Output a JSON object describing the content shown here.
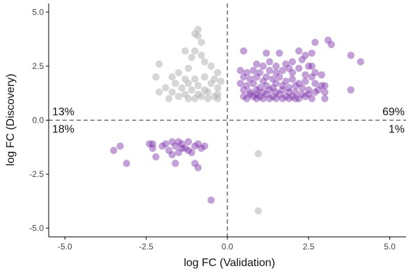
{
  "chart_data": {
    "type": "scatter",
    "xlabel": "log FC (Validation)",
    "ylabel": "log FC (Discovery)",
    "xlim": [
      -5.5,
      5.5
    ],
    "ylim": [
      -5.4,
      5.4
    ],
    "x_ticks": [
      -5.0,
      -2.5,
      0.0,
      2.5,
      5.0
    ],
    "x_tick_labels": [
      "-5.0",
      "-2.5",
      "0.0",
      "2.5",
      "5.0"
    ],
    "y_ticks": [
      -5.0,
      -2.5,
      0.0,
      2.5,
      5.0
    ],
    "y_tick_labels": [
      "-5.0",
      "-2.5",
      "0.0",
      "2.5",
      "5.0"
    ],
    "grid": false,
    "reference_lines": {
      "x": 0,
      "y": 0,
      "style": "dashed"
    },
    "colors": {
      "concordant": "#7b2fa8",
      "discordant": "#b5b5b5",
      "reference_line": "#555555"
    },
    "quadrant_labels": [
      {
        "quadrant": "upper-left",
        "text": "13%"
      },
      {
        "quadrant": "lower-left",
        "text": "18%"
      },
      {
        "quadrant": "upper-right",
        "text": "69%"
      },
      {
        "quadrant": "lower-right",
        "text": "1%"
      }
    ],
    "series": [
      {
        "group": "concordant",
        "color": "#7b2fa8",
        "opacity": 0.45,
        "points": [
          [
            0.5,
            3.2
          ],
          [
            1.2,
            3.1
          ],
          [
            1.6,
            3.1
          ],
          [
            2.2,
            3.2
          ],
          [
            2.4,
            3.0
          ],
          [
            2.6,
            3.1
          ],
          [
            2.7,
            3.6
          ],
          [
            3.1,
            3.7
          ],
          [
            3.2,
            3.5
          ],
          [
            3.8,
            3.0
          ],
          [
            4.1,
            2.7
          ],
          [
            0.9,
            2.6
          ],
          [
            1.3,
            2.7
          ],
          [
            1.5,
            2.5
          ],
          [
            1.8,
            2.6
          ],
          [
            2.0,
            2.7
          ],
          [
            2.3,
            2.8
          ],
          [
            2.5,
            2.5
          ],
          [
            2.6,
            2.5
          ],
          [
            2.7,
            2.2
          ],
          [
            2.9,
            2.1
          ],
          [
            0.4,
            2.3
          ],
          [
            0.6,
            2.2
          ],
          [
            0.8,
            2.3
          ],
          [
            1.0,
            2.2
          ],
          [
            1.1,
            2.5
          ],
          [
            1.3,
            2.3
          ],
          [
            1.5,
            2.2
          ],
          [
            1.7,
            2.3
          ],
          [
            1.9,
            2.4
          ],
          [
            2.0,
            2.2
          ],
          [
            2.2,
            2.4
          ],
          [
            2.4,
            2.1
          ],
          [
            2.6,
            2.0
          ],
          [
            0.5,
            2.0
          ],
          [
            0.7,
            1.9
          ],
          [
            0.9,
            2.0
          ],
          [
            1.1,
            1.8
          ],
          [
            1.2,
            2.0
          ],
          [
            1.4,
            1.9
          ],
          [
            1.6,
            2.0
          ],
          [
            1.8,
            1.8
          ],
          [
            2.0,
            1.9
          ],
          [
            2.2,
            1.7
          ],
          [
            2.4,
            1.8
          ],
          [
            2.7,
            1.7
          ],
          [
            2.9,
            1.6
          ],
          [
            3.0,
            1.6
          ],
          [
            0.4,
            1.7
          ],
          [
            0.6,
            1.6
          ],
          [
            0.8,
            1.7
          ],
          [
            1.0,
            1.5
          ],
          [
            1.2,
            1.6
          ],
          [
            1.4,
            1.5
          ],
          [
            1.5,
            1.7
          ],
          [
            1.7,
            1.6
          ],
          [
            1.9,
            1.5
          ],
          [
            2.1,
            1.6
          ],
          [
            2.3,
            1.5
          ],
          [
            2.5,
            1.4
          ],
          [
            2.8,
            1.4
          ],
          [
            3.8,
            1.4
          ],
          [
            0.5,
            1.4
          ],
          [
            0.7,
            1.3
          ],
          [
            0.9,
            1.4
          ],
          [
            1.1,
            1.3
          ],
          [
            1.3,
            1.4
          ],
          [
            1.5,
            1.3
          ],
          [
            1.7,
            1.4
          ],
          [
            1.9,
            1.3
          ],
          [
            2.1,
            1.3
          ],
          [
            2.3,
            1.2
          ],
          [
            2.5,
            1.2
          ],
          [
            2.7,
            1.3
          ],
          [
            3.0,
            1.3
          ],
          [
            0.5,
            1.1
          ],
          [
            0.7,
            1.2
          ],
          [
            0.8,
            1.1
          ],
          [
            0.9,
            1.2
          ],
          [
            1.0,
            1.1
          ],
          [
            1.2,
            1.2
          ],
          [
            1.4,
            1.1
          ],
          [
            1.6,
            1.2
          ],
          [
            1.8,
            1.1
          ],
          [
            2.0,
            1.1
          ],
          [
            2.2,
            1.0
          ],
          [
            2.4,
            1.1
          ],
          [
            2.6,
            1.0
          ],
          [
            3.0,
            1.0
          ],
          [
            0.6,
            1.0
          ],
          [
            0.9,
            1.0
          ],
          [
            1.1,
            1.0
          ],
          [
            1.3,
            1.0
          ],
          [
            1.5,
            1.0
          ],
          [
            1.7,
            1.0
          ],
          [
            1.9,
            1.0
          ],
          [
            2.1,
            1.0
          ],
          [
            -3.5,
            -1.4
          ],
          [
            -3.3,
            -1.2
          ],
          [
            -3.1,
            -2.0
          ],
          [
            -2.4,
            -1.1
          ],
          [
            -2.3,
            -1.3
          ],
          [
            -2.2,
            -1.7
          ],
          [
            -2.0,
            -1.2
          ],
          [
            -1.9,
            -1.1
          ],
          [
            -1.8,
            -1.4
          ],
          [
            -1.7,
            -1.6
          ],
          [
            -1.6,
            -1.2
          ],
          [
            -1.5,
            -1.0
          ],
          [
            -1.4,
            -1.1
          ],
          [
            -1.3,
            -1.3
          ],
          [
            -1.2,
            -1.0
          ],
          [
            -1.1,
            -1.5
          ],
          [
            -1.0,
            -1.2
          ],
          [
            -0.9,
            -1.1
          ],
          [
            -0.8,
            -1.3
          ],
          [
            -0.7,
            -1.2
          ],
          [
            -1.0,
            -2.0
          ],
          [
            -0.9,
            -2.2
          ],
          [
            -1.5,
            -1.5
          ],
          [
            -2.3,
            -1.1
          ],
          [
            -1.7,
            -1.0
          ],
          [
            -1.4,
            -1.3
          ],
          [
            -1.2,
            -1.4
          ],
          [
            -1.6,
            -2.0
          ],
          [
            -0.5,
            -3.7
          ]
        ]
      },
      {
        "group": "discordant",
        "color": "#b5b5b5",
        "opacity": 0.55,
        "points": [
          [
            -0.9,
            4.2
          ],
          [
            -1.0,
            4.0
          ],
          [
            -0.9,
            3.9
          ],
          [
            -0.8,
            3.6
          ],
          [
            -1.3,
            3.2
          ],
          [
            -1.0,
            3.2
          ],
          [
            -0.8,
            3.0
          ],
          [
            -1.1,
            2.9
          ],
          [
            -2.1,
            2.6
          ],
          [
            -0.7,
            2.7
          ],
          [
            -0.5,
            2.5
          ],
          [
            -1.2,
            2.4
          ],
          [
            -1.5,
            2.2
          ],
          [
            -0.3,
            2.2
          ],
          [
            -2.2,
            2.0
          ],
          [
            -1.7,
            2.0
          ],
          [
            -1.3,
            1.9
          ],
          [
            -1.0,
            1.9
          ],
          [
            -0.7,
            2.0
          ],
          [
            -0.4,
            1.9
          ],
          [
            -1.6,
            1.7
          ],
          [
            -1.2,
            1.7
          ],
          [
            -0.9,
            1.6
          ],
          [
            -0.5,
            1.7
          ],
          [
            -0.2,
            1.8
          ],
          [
            -1.9,
            1.5
          ],
          [
            -1.4,
            1.5
          ],
          [
            -1.1,
            1.4
          ],
          [
            -0.7,
            1.4
          ],
          [
            -0.3,
            1.5
          ],
          [
            -2.1,
            1.3
          ],
          [
            -1.7,
            1.3
          ],
          [
            -1.3,
            1.2
          ],
          [
            -0.9,
            1.2
          ],
          [
            -0.6,
            1.3
          ],
          [
            -0.3,
            1.2
          ],
          [
            -1.5,
            1.1
          ],
          [
            -1.0,
            1.0
          ],
          [
            -0.6,
            1.0
          ],
          [
            -0.3,
            1.0
          ],
          [
            -0.8,
            1.1
          ],
          [
            -0.4,
            1.1
          ],
          [
            -1.8,
            1.0
          ],
          [
            -1.2,
            1.0
          ],
          [
            0.95,
            -1.55
          ],
          [
            0.95,
            -4.2
          ]
        ]
      }
    ]
  }
}
